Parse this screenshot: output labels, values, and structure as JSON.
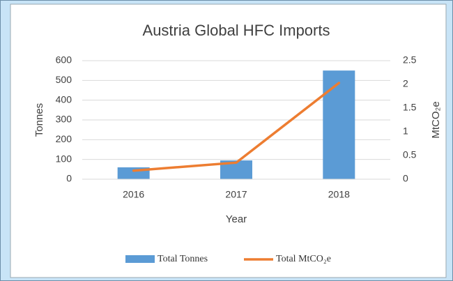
{
  "chart_data": {
    "type": "bar",
    "title": "Austria Global HFC Imports",
    "x_label": "Year",
    "y_label": "Tonnes",
    "y2_label": "MtCO₂e",
    "categories": [
      "2016",
      "2017",
      "2018"
    ],
    "series": [
      {
        "name": "Total Tonnes",
        "type": "bar",
        "color": "#5b9bd5",
        "values": [
          60,
          95,
          550
        ]
      },
      {
        "name": "Total MtCO₂e",
        "type": "line",
        "axis": "y2",
        "color": "#ed7d31",
        "values": [
          0.18,
          0.35,
          2.03
        ]
      }
    ],
    "ylim": [
      0,
      600
    ],
    "yticks": [
      0,
      100,
      200,
      300,
      400,
      500,
      600
    ],
    "y2lim": [
      0,
      2.5
    ],
    "y2ticks": [
      0,
      0.5,
      1,
      1.5,
      2,
      2.5
    ],
    "grid": true,
    "legend": "bottom"
  }
}
